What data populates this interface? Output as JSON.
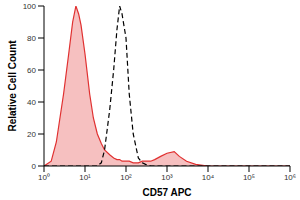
{
  "chart_data": {
    "type": "histogram",
    "xlabel": "CD57 APC",
    "ylabel": "Relative Cell Count",
    "log": "x",
    "grid": false,
    "xlim": [
      1,
      1000000
    ],
    "xticks": [
      {
        "value": 1,
        "label": "10⁰"
      },
      {
        "value": 10,
        "label": "10¹"
      },
      {
        "value": 100,
        "label": "10²"
      },
      {
        "value": 1000,
        "label": "10³"
      },
      {
        "value": 10000,
        "label": "10⁴"
      },
      {
        "value": 100000,
        "label": "10⁵"
      },
      {
        "value": 1000000,
        "label": "10⁶"
      }
    ],
    "ylim": [
      0,
      100
    ],
    "yticks": [
      0,
      20,
      40,
      60,
      80,
      100
    ],
    "x": [
      1,
      1.5,
      2,
      3,
      4,
      5,
      6,
      7,
      8,
      10,
      13,
      16,
      20,
      25,
      30,
      40,
      50,
      60,
      70,
      80,
      100,
      120,
      150,
      200,
      250,
      300,
      400,
      500,
      700,
      1000,
      1500,
      2000,
      3000,
      5000,
      10000,
      100000,
      1000000
    ],
    "series": [
      {
        "type": "area",
        "color": "#e03030",
        "line_style": "solid",
        "values": [
          0,
          3,
          15,
          45,
          70,
          90,
          100,
          95,
          88,
          70,
          45,
          30,
          20,
          14,
          10,
          7,
          5,
          4,
          4,
          3,
          3,
          3,
          2,
          2,
          3,
          3,
          3,
          4,
          6,
          8,
          9,
          6,
          3,
          1,
          0,
          0,
          0
        ]
      },
      {
        "type": "line",
        "color": "#000000",
        "line_style": "dashed",
        "values": [
          0,
          0,
          0,
          0,
          0,
          0,
          0,
          0,
          0,
          0,
          0,
          0,
          0,
          2,
          10,
          35,
          60,
          85,
          100,
          95,
          80,
          45,
          20,
          5,
          2,
          1,
          0,
          0,
          0,
          0,
          0,
          0,
          0,
          0,
          0,
          0,
          0
        ]
      }
    ]
  }
}
